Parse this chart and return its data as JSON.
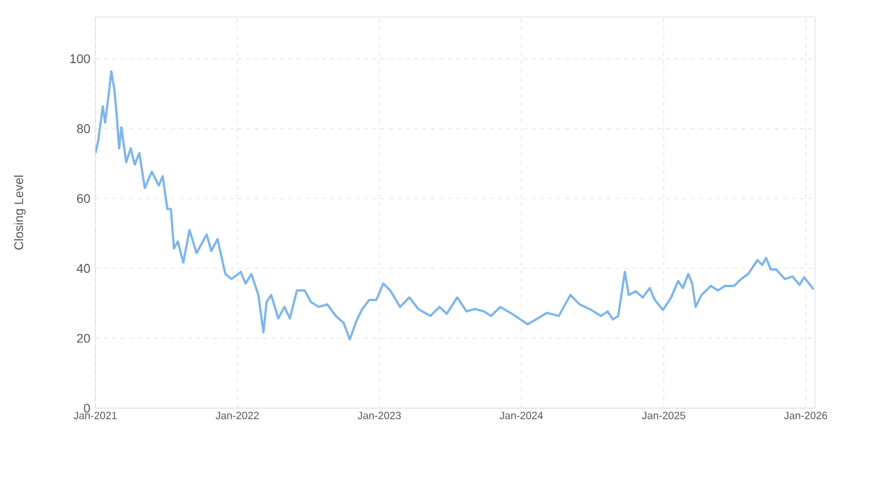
{
  "chart_data": {
    "type": "line",
    "ylabel": "Closing Level",
    "xlim": [
      "2021-01-01",
      "2026-01-25"
    ],
    "ylim": [
      0,
      112
    ],
    "xticks": [
      {
        "value": "2021-01-01",
        "label": "Jan-2021"
      },
      {
        "value": "2022-01-01",
        "label": "Jan-2022"
      },
      {
        "value": "2023-01-01",
        "label": "Jan-2023"
      },
      {
        "value": "2024-01-01",
        "label": "Jan-2024"
      },
      {
        "value": "2025-01-01",
        "label": "Jan-2025"
      },
      {
        "value": "2026-01-01",
        "label": "Jan-2026"
      }
    ],
    "yticks": [
      0,
      20,
      40,
      60,
      80,
      100
    ],
    "grid": true,
    "series": [
      {
        "color": "#7cb5ec",
        "x": [
          "2021-01-01",
          "2021-01-08",
          "2021-01-20",
          "2021-01-26",
          "2021-02-04",
          "2021-02-11",
          "2021-02-19",
          "2021-02-25",
          "2021-03-03",
          "2021-03-09",
          "2021-03-21",
          "2021-04-02",
          "2021-04-12",
          "2021-04-24",
          "2021-05-08",
          "2021-05-26",
          "2021-06-13",
          "2021-06-23",
          "2021-07-05",
          "2021-07-14",
          "2021-07-22",
          "2021-08-01",
          "2021-08-15",
          "2021-08-31",
          "2021-09-18",
          "2021-10-14",
          "2021-10-26",
          "2021-11-11",
          "2021-12-01",
          "2021-12-17",
          "2022-01-10",
          "2022-01-22",
          "2022-02-06",
          "2022-02-24",
          "2022-03-09",
          "2022-03-17",
          "2022-03-29",
          "2022-04-16",
          "2022-05-02",
          "2022-05-16",
          "2022-06-03",
          "2022-06-23",
          "2022-07-09",
          "2022-07-29",
          "2022-08-20",
          "2022-09-11",
          "2022-10-01",
          "2022-10-17",
          "2022-11-03",
          "2022-11-18",
          "2022-12-06",
          "2022-12-24",
          "2023-01-11",
          "2023-01-29",
          "2023-02-23",
          "2023-03-19",
          "2023-04-11",
          "2023-05-12",
          "2023-06-05",
          "2023-06-23",
          "2023-07-20",
          "2023-08-13",
          "2023-09-03",
          "2023-09-27",
          "2023-10-15",
          "2023-11-08",
          "2023-12-08",
          "2023-12-26",
          "2024-01-17",
          "2024-02-12",
          "2024-03-07",
          "2024-04-06",
          "2024-05-06",
          "2024-05-30",
          "2024-06-29",
          "2024-07-23",
          "2024-08-10",
          "2024-08-23",
          "2024-09-06",
          "2024-09-23",
          "2024-10-03",
          "2024-10-21",
          "2024-11-08",
          "2024-11-26",
          "2024-12-09",
          "2024-12-30",
          "2025-01-20",
          "2025-02-07",
          "2025-02-19",
          "2025-03-05",
          "2025-03-15",
          "2025-03-24",
          "2025-04-08",
          "2025-05-02",
          "2025-05-20",
          "2025-06-07",
          "2025-07-01",
          "2025-07-19",
          "2025-08-06",
          "2025-08-30",
          "2025-09-11",
          "2025-09-21",
          "2025-10-03",
          "2025-10-17",
          "2025-11-08",
          "2025-11-28",
          "2025-12-16",
          "2025-12-28",
          "2026-01-09",
          "2026-01-21"
        ],
        "values": [
          73,
          76.4,
          86.4,
          81.7,
          89.7,
          96.4,
          91,
          83.7,
          74.4,
          80.4,
          70.4,
          74.4,
          69.7,
          73,
          63,
          67.7,
          63.7,
          66.4,
          57,
          57,
          45.7,
          47.7,
          41.7,
          51,
          44.4,
          49.7,
          45,
          48.4,
          38.4,
          37,
          39,
          35.7,
          38.4,
          32.4,
          21.7,
          30.4,
          32.4,
          25.7,
          29,
          25.7,
          33.7,
          33.7,
          30.4,
          29,
          29.7,
          26.4,
          24.4,
          19.7,
          25,
          28.4,
          31,
          31,
          35.7,
          33.7,
          29,
          31.7,
          28.4,
          26.4,
          29,
          27,
          31.7,
          27.7,
          28.4,
          27.7,
          26.4,
          29,
          27,
          25.7,
          24,
          25.7,
          27.3,
          26.4,
          32.4,
          29.7,
          28.1,
          26.4,
          27.7,
          25.4,
          26.4,
          39,
          32.4,
          33.5,
          31.7,
          34.4,
          31,
          28.1,
          31.7,
          36.4,
          34.4,
          38.4,
          35.7,
          29,
          32.4,
          35,
          33.7,
          35,
          35,
          37,
          38.4,
          42.4,
          41,
          43,
          39.7,
          39.7,
          37,
          37.7,
          35.3,
          37.5,
          35.7,
          34
        ]
      }
    ]
  }
}
